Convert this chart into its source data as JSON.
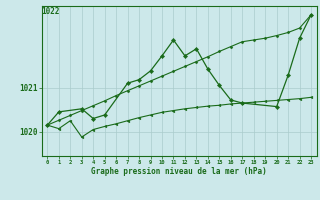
{
  "bg_color": "#cce8ea",
  "grid_color": "#aacccc",
  "line_color": "#1a6b1a",
  "xlabel": "Graphe pression niveau de la mer (hPa)",
  "top_label": "1022",
  "yticks": [
    1020,
    1021
  ],
  "xlim": [
    -0.5,
    23.5
  ],
  "ylim": [
    1019.45,
    1022.85
  ],
  "hours": [
    0,
    1,
    2,
    3,
    4,
    5,
    6,
    7,
    8,
    9,
    10,
    11,
    12,
    13,
    14,
    15,
    16,
    17,
    18,
    19,
    20,
    21,
    22,
    23
  ],
  "s1_x": [
    0,
    1,
    3,
    4,
    5,
    7,
    8,
    9,
    10,
    11,
    12,
    13,
    14,
    15,
    16,
    17,
    20,
    21,
    22,
    23
  ],
  "s1_y": [
    1020.15,
    1020.45,
    1020.52,
    1020.3,
    1020.38,
    1021.1,
    1021.18,
    1021.38,
    1021.72,
    1022.08,
    1021.72,
    1021.88,
    1021.42,
    1021.05,
    1020.72,
    1020.65,
    1020.57,
    1021.28,
    1022.12,
    1022.65
  ],
  "s2_x": [
    0,
    1,
    2,
    3,
    4,
    5,
    6,
    7,
    8,
    9,
    10,
    11,
    12,
    13,
    14,
    15,
    16,
    17,
    18,
    19,
    20,
    21,
    22,
    23
  ],
  "s2_y": [
    1020.15,
    1020.07,
    1020.25,
    1019.88,
    1020.05,
    1020.12,
    1020.18,
    1020.25,
    1020.32,
    1020.38,
    1020.44,
    1020.48,
    1020.52,
    1020.55,
    1020.58,
    1020.6,
    1020.63,
    1020.65,
    1020.67,
    1020.69,
    1020.71,
    1020.73,
    1020.75,
    1020.78
  ],
  "s3_x": [
    0,
    1,
    2,
    3,
    4,
    5,
    6,
    7,
    8,
    9,
    10,
    11,
    12,
    13,
    14,
    15,
    16,
    17,
    18,
    19,
    20,
    21,
    22,
    23
  ],
  "s3_y": [
    1020.15,
    1020.26,
    1020.37,
    1020.48,
    1020.59,
    1020.7,
    1020.82,
    1020.93,
    1021.04,
    1021.15,
    1021.26,
    1021.37,
    1021.48,
    1021.59,
    1021.7,
    1021.82,
    1021.93,
    1022.04,
    1022.08,
    1022.12,
    1022.18,
    1022.25,
    1022.35,
    1022.65
  ]
}
